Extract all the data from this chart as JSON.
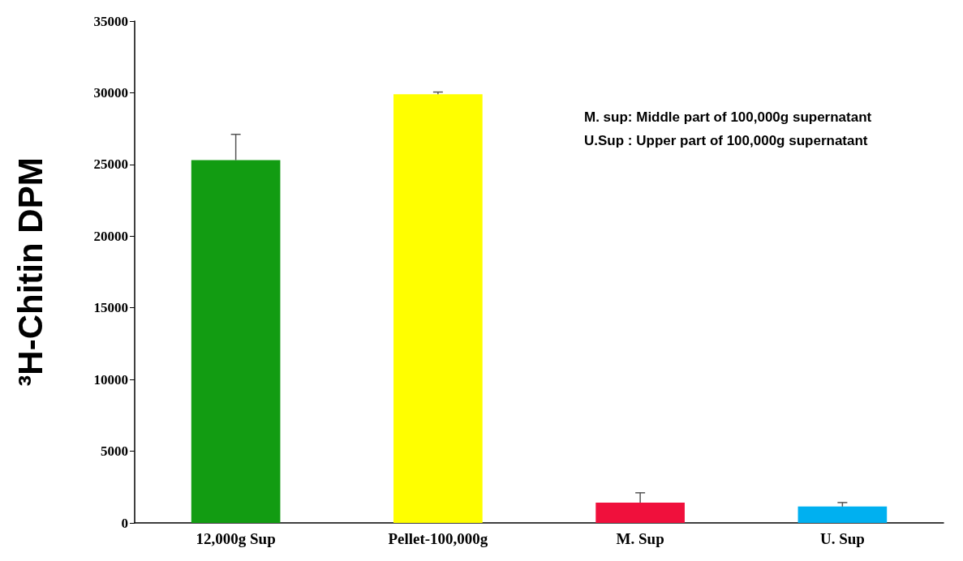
{
  "chart_data": {
    "type": "bar",
    "ylabel": "³H-Chitin DPM",
    "categories": [
      "12,000g Sup",
      "Pellet-100,000g",
      "M. Sup",
      "U. Sup"
    ],
    "values": [
      25300,
      29900,
      1420,
      1140
    ],
    "colors": [
      "#129c12",
      "#ffff00",
      "#f0103c",
      "#00b0f0"
    ],
    "errors": [
      [
        25300,
        27100
      ],
      [
        29900,
        30050
      ],
      [
        1420,
        2100
      ],
      [
        1140,
        1420
      ]
    ],
    "ylim": [
      0,
      35000
    ],
    "yticks": [
      0,
      5000,
      10000,
      15000,
      20000,
      25000,
      30000,
      35000
    ],
    "grid": false,
    "annotations": [
      "M. sup: Middle part of 100,000g supernatant",
      "U.Sup : Upper part of  100,000g supernatant"
    ]
  }
}
